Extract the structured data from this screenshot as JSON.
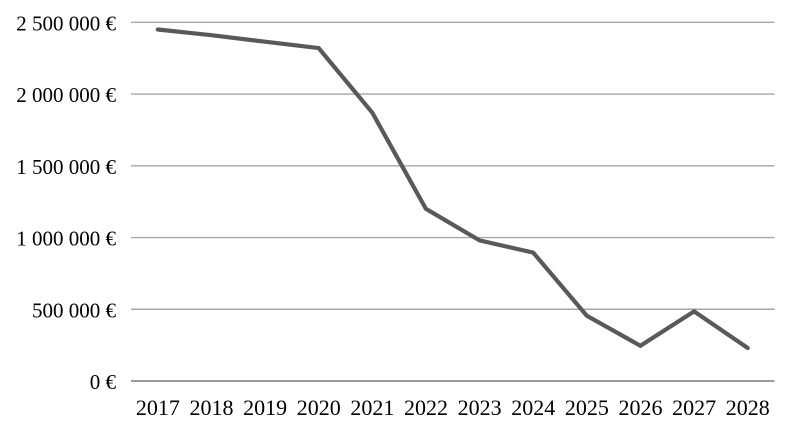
{
  "chart_data": {
    "type": "line",
    "title": "",
    "xlabel": "",
    "ylabel": "",
    "categories": [
      "2017",
      "2018",
      "2019",
      "2020",
      "2021",
      "2022",
      "2023",
      "2024",
      "2025",
      "2026",
      "2027",
      "2028"
    ],
    "values": [
      2450000,
      2410000,
      2365000,
      2320000,
      1870000,
      1200000,
      980000,
      895000,
      455000,
      245000,
      485000,
      230000
    ],
    "ylim": [
      0,
      2500000
    ],
    "y_ticks": [
      {
        "value": 0,
        "label": "0 €"
      },
      {
        "value": 500000,
        "label": "500 000 €"
      },
      {
        "value": 1000000,
        "label": "1 000 000 €"
      },
      {
        "value": 1500000,
        "label": "1 500 000 €"
      },
      {
        "value": 2000000,
        "label": "2 000 000 €"
      },
      {
        "value": 2500000,
        "label": "2 500 000 €"
      }
    ],
    "grid": "horizontal",
    "legend": "none",
    "colors": {
      "line": "#595959",
      "gridline": "#A6A6A6",
      "axis_line": "#8C8C8C",
      "text": "#000000",
      "background": "#FFFFFF"
    }
  }
}
